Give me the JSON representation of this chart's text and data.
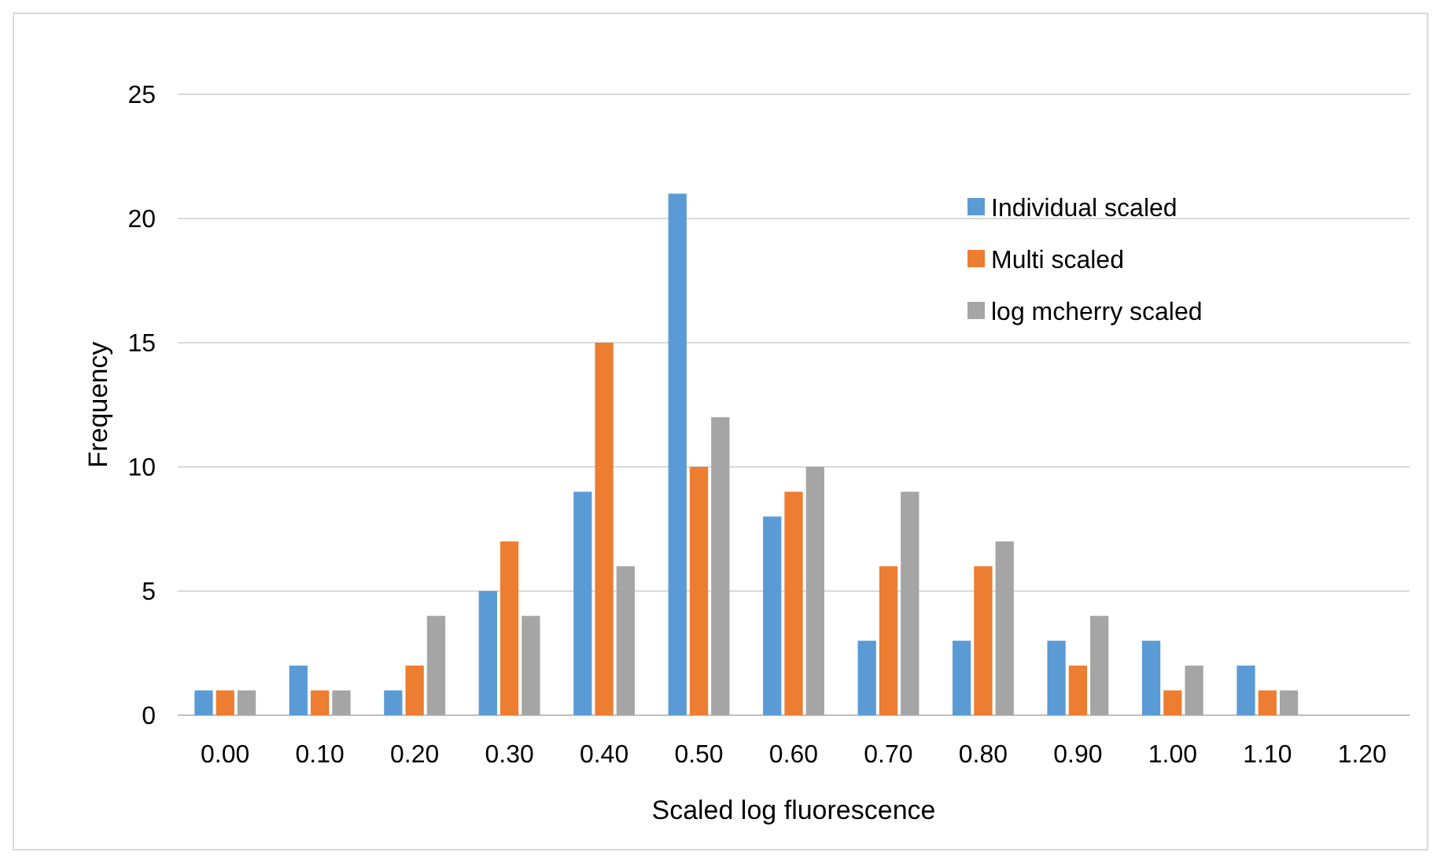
{
  "chart_data": {
    "type": "bar",
    "xlabel": "Scaled log fluorescence",
    "ylabel": "Frequency",
    "categories": [
      "0.00",
      "0.10",
      "0.20",
      "0.30",
      "0.40",
      "0.50",
      "0.60",
      "0.70",
      "0.80",
      "0.90",
      "1.00",
      "1.10",
      "1.20"
    ],
    "series": [
      {
        "name": "Individual scaled",
        "color": "#5b9bd5",
        "values": [
          1,
          2,
          1,
          5,
          9,
          21,
          8,
          3,
          3,
          3,
          3,
          2,
          0
        ]
      },
      {
        "name": "Multi scaled",
        "color": "#ed7d31",
        "values": [
          1,
          1,
          2,
          7,
          15,
          10,
          9,
          6,
          6,
          2,
          1,
          1,
          0
        ]
      },
      {
        "name": "log mcherry scaled",
        "color": "#a5a5a5",
        "values": [
          1,
          1,
          4,
          4,
          6,
          12,
          10,
          9,
          7,
          4,
          2,
          1,
          0
        ]
      }
    ],
    "ylim": [
      0,
      25
    ],
    "yticks": [
      0,
      5,
      10,
      15,
      20,
      25
    ],
    "grid": "y",
    "legend": "top right"
  }
}
